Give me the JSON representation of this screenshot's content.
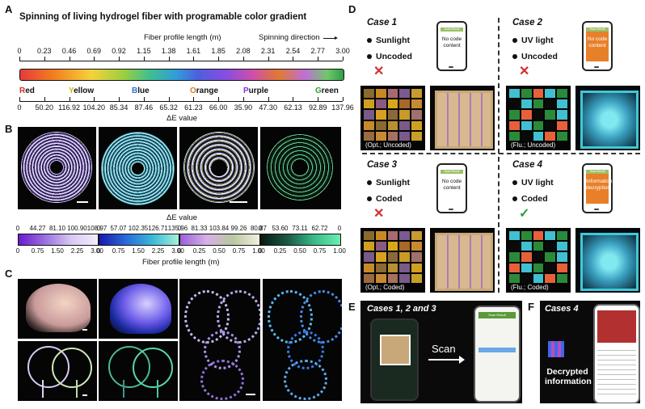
{
  "panel_a": {
    "letter": "A",
    "title": "Spinning of living hydrogel fiber with programable color gradient",
    "axis_label": "Fiber profile length (m)",
    "direction_label": "Spinning direction",
    "length_ticks": [
      "0",
      "0.23",
      "0.46",
      "0.69",
      "0.92",
      "1.15",
      "1.38",
      "1.61",
      "1.85",
      "2.08",
      "2.31",
      "2.54",
      "2.77",
      "3.00"
    ],
    "colors": [
      {
        "initial": "R",
        "rest": "ed",
        "hex": "#d62828"
      },
      {
        "initial": "Y",
        "rest": "ellow",
        "hex": "#e0b000"
      },
      {
        "initial": "B",
        "rest": "lue",
        "hex": "#2a6fd6"
      },
      {
        "initial": "O",
        "rest": "range",
        "hex": "#e07a10"
      },
      {
        "initial": "P",
        "rest": "urple",
        "hex": "#8a2be2"
      },
      {
        "initial": "G",
        "rest": "reen",
        "hex": "#2aa02a"
      }
    ],
    "delta_e_ticks": [
      "0",
      "50.20",
      "116.92",
      "104.20",
      "85.34",
      "87.46",
      "65.32",
      "61.23",
      "66.00",
      "35.90",
      "47.30",
      "62.13",
      "92.89",
      "137.96"
    ],
    "delta_e_label": "ΔE value"
  },
  "panel_b": {
    "letter": "B",
    "delta_e_label": "ΔE value",
    "length_label": "Fiber profile length (m)",
    "bars": [
      {
        "top": [
          "0",
          "44.27",
          "81.10",
          "100.90",
          "108.97"
        ],
        "bottom": [
          "0",
          "0.75",
          "1.50",
          "2.25",
          "3.00"
        ]
      },
      {
        "top": [
          "0",
          "57.07",
          "102.35",
          "126.71",
          "135.96"
        ],
        "bottom": [
          "0",
          "0.75",
          "1.50",
          "2.25",
          "3.00"
        ]
      },
      {
        "top": [
          "0",
          "81.33",
          "103.84",
          "99.26",
          "80.87"
        ],
        "bottom": [
          "0",
          "0.25",
          "0.50",
          "0.75",
          "1.00"
        ]
      },
      {
        "top": [
          "0",
          "53.60",
          "73.11",
          "62.72",
          "0"
        ],
        "bottom": [
          "0",
          "0.25",
          "0.50",
          "0.75",
          "1.00"
        ]
      }
    ]
  },
  "panel_c": {
    "letter": "C"
  },
  "panel_d": {
    "letter": "D",
    "cases": [
      {
        "title": "Case 1",
        "light": "Sunlight",
        "code": "Uncoded",
        "screen_header": "Scan Result",
        "screen_text": "No code content",
        "result": "✕",
        "caption": "(Opt.; Uncoded)"
      },
      {
        "title": "Case 2",
        "light": "UV light",
        "code": "Uncoded",
        "screen_header": "Scan Result",
        "screen_text": "No code content",
        "result": "✕",
        "caption": "(Flu.; Uncoded)"
      },
      {
        "title": "Case 3",
        "light": "Sunlight",
        "code": "Coded",
        "screen_header": "Scan Result",
        "screen_text": "No code content",
        "result": "✕",
        "caption": "(Opt.; Coded)"
      },
      {
        "title": "Case 4",
        "light": "UV light",
        "code": "Coded",
        "screen_header": "Scan Result",
        "screen_text": "Information decryption",
        "result": "✓",
        "caption": "(Flu.; Coded)"
      }
    ]
  },
  "panel_e": {
    "letter": "E",
    "title": "Cases 1, 2 and 3",
    "scan_label": "Scan",
    "screen_header": "Scan Result"
  },
  "panel_f": {
    "letter": "F",
    "title": "Cases 4",
    "decrypted_label": "Decrypted information"
  },
  "colors": {
    "cross": "#d32f2f",
    "check": "#2e9e3e",
    "screen_orange": "#e8802a",
    "screen_green": "#9cc06a"
  }
}
